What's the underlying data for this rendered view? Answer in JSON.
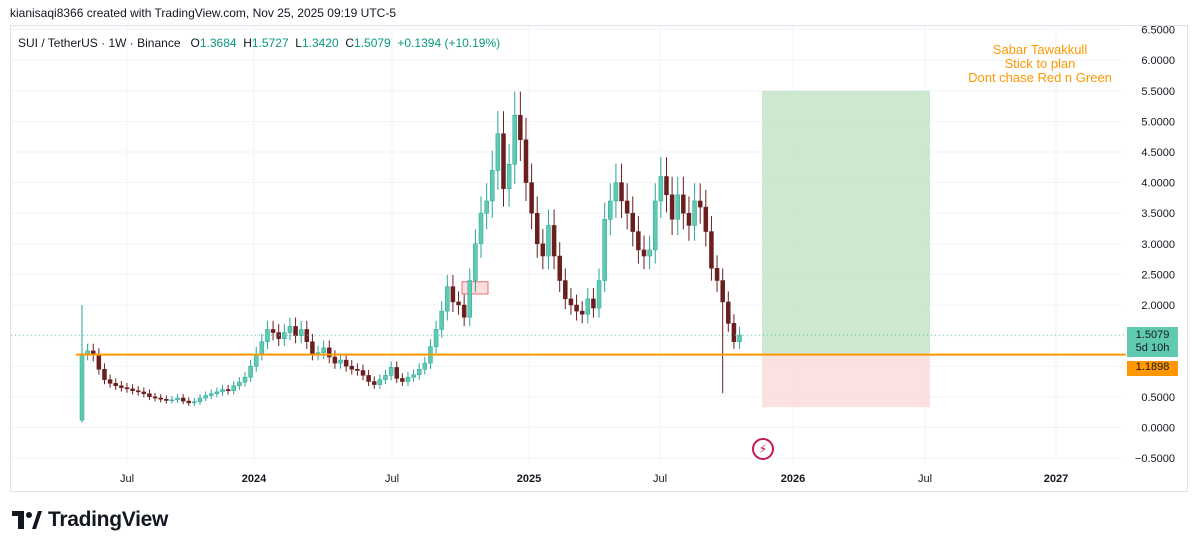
{
  "credit": "kianisaqi8366 created with TradingView.com, Nov 25, 2025 09:19 UTC-5",
  "legend": {
    "symbol": "SUI / TetherUS · 1W · Binance",
    "o_label": "O",
    "o_value": "1.3684",
    "h_label": "H",
    "h_value": "1.5727",
    "l_label": "L",
    "l_value": "1.3420",
    "c_label": "C",
    "c_value": "1.5079",
    "change": "+0.1394 (+10.19%)"
  },
  "note_lines": [
    "Sabar Tawakkull",
    "Stick to plan",
    "Dont chase Red n Green"
  ],
  "price_tags": {
    "last_price": "1.5079",
    "countdown": "5d 10h",
    "level": "1.1898"
  },
  "logo_text": "TradingView",
  "colors": {
    "up": "#26a69a",
    "up_fill": "#5fcab0",
    "down": "#6b1e1e",
    "level_line": "#ff9800",
    "target_zone": "#c8e6c9",
    "stop_zone": "#fcdede",
    "grid": "#f0f3fa"
  },
  "chart_data": {
    "type": "candlestick",
    "symbol": "SUI / TetherUS",
    "interval": "1W",
    "exchange": "Binance",
    "ylim": [
      -0.5,
      6.5
    ],
    "y_ticks": [
      "6.5000",
      "6.0000",
      "5.5000",
      "5.0000",
      "4.5000",
      "4.0000",
      "3.5000",
      "3.0000",
      "2.5000",
      "2.0000",
      "1.5000",
      "1.0000",
      "0.5000",
      "0.0000",
      "−0.5000"
    ],
    "x_ticks": [
      "Jul",
      "2024",
      "Jul",
      "2025",
      "Jul",
      "2026",
      "Jul",
      "2027"
    ],
    "horizontal_level": 1.1898,
    "last_price": 1.5079,
    "position_tool": {
      "entry": 1.19,
      "target": 5.5,
      "stop": 0.33
    },
    "close_series": [
      1.2,
      1.25,
      1.18,
      0.95,
      0.78,
      0.72,
      0.68,
      0.65,
      0.63,
      0.6,
      0.58,
      0.55,
      0.5,
      0.48,
      0.46,
      0.44,
      0.45,
      0.48,
      0.43,
      0.4,
      0.42,
      0.48,
      0.52,
      0.55,
      0.58,
      0.62,
      0.6,
      0.68,
      0.74,
      0.82,
      1.0,
      1.2,
      1.4,
      1.6,
      1.55,
      1.45,
      1.55,
      1.65,
      1.5,
      1.6,
      1.4,
      1.2,
      1.22,
      1.3,
      1.15,
      1.05,
      1.1,
      1.0,
      0.95,
      0.93,
      0.85,
      0.75,
      0.7,
      0.78,
      0.85,
      0.98,
      0.8,
      0.75,
      0.82,
      0.86,
      0.95,
      1.05,
      1.32,
      1.6,
      1.9,
      2.3,
      2.05,
      2.0,
      1.8,
      2.4,
      3.0,
      3.5,
      3.7,
      4.2,
      4.8,
      3.9,
      4.3,
      5.1,
      4.7,
      4.0,
      3.5,
      3.0,
      2.8,
      3.3,
      2.8,
      2.4,
      2.1,
      2.0,
      1.9,
      1.85,
      2.1,
      1.95,
      2.4,
      3.4,
      3.7,
      4.0,
      3.7,
      3.5,
      3.2,
      2.9,
      2.8,
      2.9,
      3.7,
      4.1,
      3.8,
      3.4,
      3.8,
      3.5,
      3.3,
      3.7,
      3.6,
      3.2,
      2.6,
      2.4,
      2.05,
      1.7,
      1.4,
      1.51
    ]
  }
}
